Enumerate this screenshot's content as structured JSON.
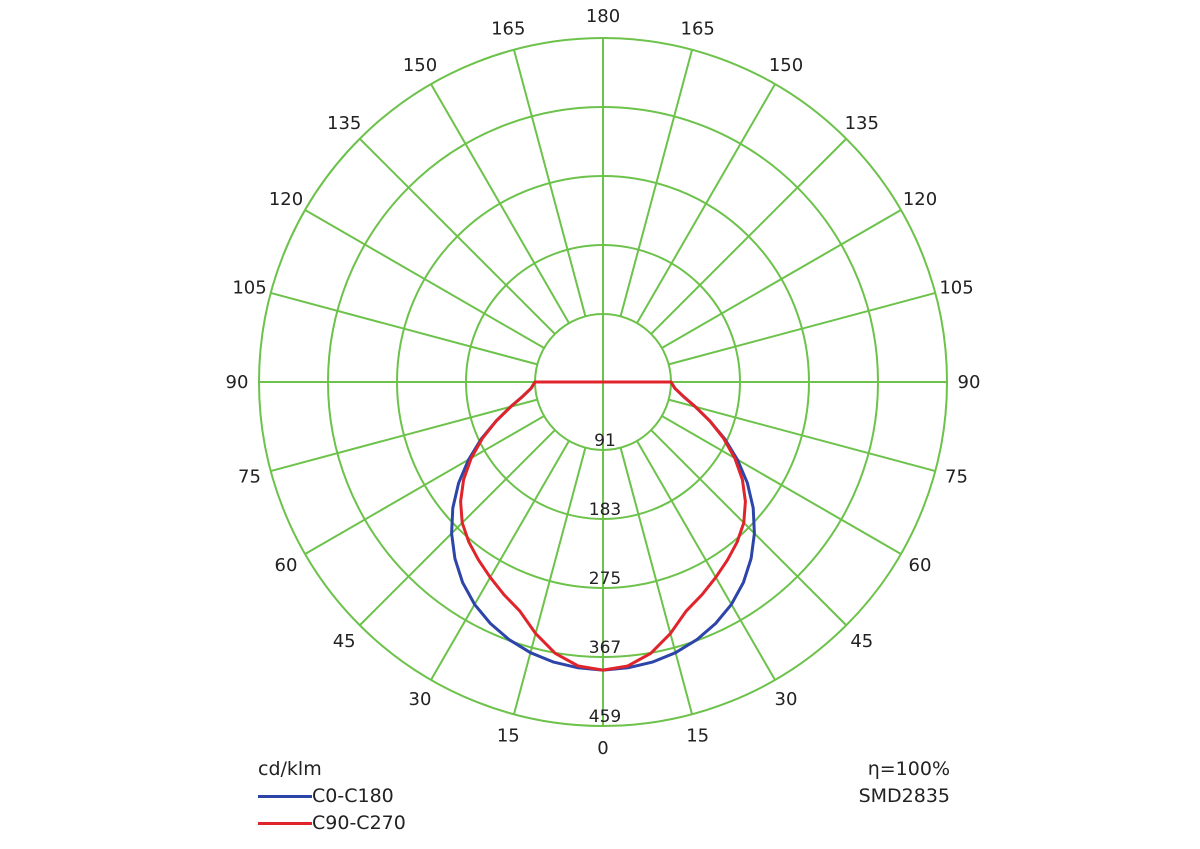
{
  "chart_data": {
    "type": "polar",
    "units": "cd/klm",
    "efficiency": "η=100%",
    "led": "SMD2835",
    "grid_color": "#6cc24a",
    "grid": true,
    "radial_max": 459,
    "radial_ticks": [
      "91",
      "183",
      "275",
      "367",
      "459"
    ],
    "angle_labels_right": [
      "0",
      "15",
      "30",
      "45",
      "60",
      "75",
      "90",
      "105",
      "120",
      "135",
      "150",
      "165",
      "180"
    ],
    "angle_labels_left": [
      "15",
      "30",
      "45",
      "60",
      "75",
      "90",
      "105",
      "120",
      "135",
      "150",
      "165"
    ],
    "series": [
      {
        "name": "C0-C180",
        "color": "#2d44a8",
        "angles": [
          0,
          5,
          10,
          15,
          20,
          25,
          30,
          35,
          40,
          45,
          50,
          55,
          60,
          65,
          70,
          75,
          80,
          85,
          90
        ],
        "values": [
          366,
          364,
          360,
          353,
          343,
          330,
          314,
          294,
          270,
          243,
          213,
          180,
          145,
          110,
          76,
          46,
          22,
          7,
          0
        ]
      },
      {
        "name": "C90-C270",
        "color": "#e0242c",
        "angles": [
          0,
          5,
          10,
          15,
          20,
          25,
          30,
          35,
          40,
          45,
          50,
          55,
          60,
          65,
          70,
          75,
          80,
          85,
          90
        ],
        "values": [
          366,
          361,
          345,
          320,
          292,
          277,
          262,
          248,
          234,
          218,
          196,
          170,
          140,
          108,
          76,
          46,
          22,
          7,
          0
        ]
      }
    ]
  }
}
